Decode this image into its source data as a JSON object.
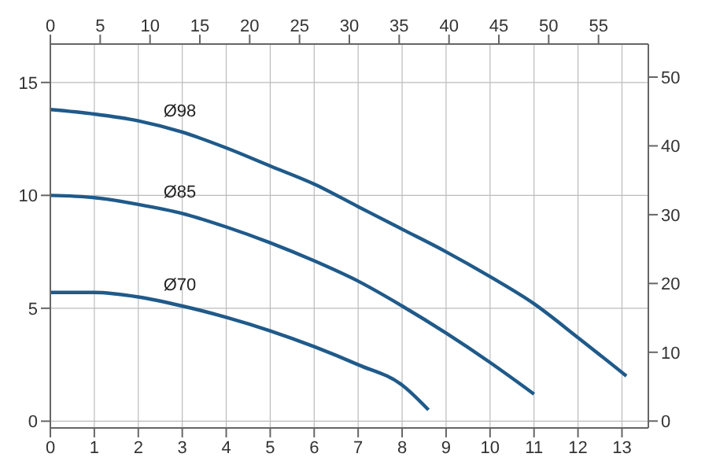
{
  "chart_data": {
    "type": "line",
    "xlim": [
      0,
      13.6
    ],
    "xticks": [
      0,
      1,
      2,
      3,
      4,
      5,
      6,
      7,
      8,
      9,
      10,
      11,
      12,
      13
    ],
    "x2lim": [
      0,
      60
    ],
    "x2ticks": [
      0,
      5,
      10,
      15,
      20,
      25,
      30,
      35,
      40,
      45,
      50,
      55
    ],
    "ylim": [
      -0.3,
      16.7
    ],
    "yticks": [
      0,
      5,
      10,
      15
    ],
    "y2lim": [
      -1,
      54.8
    ],
    "y2ticks": [
      0,
      10,
      20,
      30,
      40,
      50
    ],
    "grid": true,
    "series": [
      {
        "name": "Ø98",
        "color": "#1f5a8a",
        "x": [
          0,
          1,
          2,
          3,
          4,
          5,
          6,
          7,
          8,
          9,
          10,
          11,
          12,
          13.1
        ],
        "values": [
          13.8,
          13.6,
          13.3,
          12.8,
          12.1,
          11.3,
          10.5,
          9.5,
          8.5,
          7.5,
          6.4,
          5.2,
          3.7,
          2.0
        ]
      },
      {
        "name": "Ø85",
        "color": "#1f5a8a",
        "x": [
          0,
          1,
          2,
          3,
          4,
          5,
          6,
          7,
          8,
          9,
          10,
          11
        ],
        "values": [
          10.0,
          9.9,
          9.6,
          9.2,
          8.6,
          7.9,
          7.1,
          6.2,
          5.1,
          3.9,
          2.6,
          1.2
        ]
      },
      {
        "name": "Ø70",
        "color": "#1f5a8a",
        "x": [
          0,
          1,
          2,
          3,
          4,
          5,
          6,
          7,
          8,
          8.6
        ],
        "values": [
          5.7,
          5.7,
          5.5,
          5.1,
          4.6,
          4.0,
          3.3,
          2.5,
          1.6,
          0.5
        ]
      }
    ]
  }
}
